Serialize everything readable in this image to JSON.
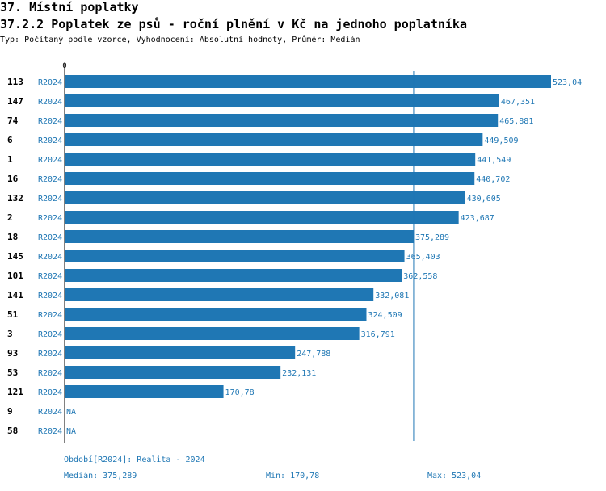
{
  "header": {
    "section": "37. Místní poplatky",
    "title": "37.2.2 Poplatek ze psů - roční plnění v Kč na jednoho poplatníka",
    "subtitle": "Typ: Počítaný podle vzorce, Vyhodnocení: Absolutní hodnoty, Průměr: Medián"
  },
  "chart_data": {
    "type": "bar",
    "orientation": "horizontal",
    "title": "37.2.2 Poplatek ze psů - roční plnění v Kč na jednoho poplatníka",
    "x_tick_label": "0",
    "xlim": [
      0,
      523.04
    ],
    "period": "R2024",
    "categories": [
      "113",
      "147",
      "74",
      "6",
      "1",
      "16",
      "132",
      "2",
      "18",
      "145",
      "101",
      "141",
      "51",
      "3",
      "93",
      "53",
      "121",
      "9",
      "58"
    ],
    "values": [
      523.04,
      467.351,
      465.881,
      449.509,
      441.549,
      440.702,
      430.605,
      423.687,
      375.289,
      365.403,
      362.558,
      332.081,
      324.509,
      316.791,
      247.788,
      232.131,
      170.78,
      null,
      null
    ],
    "value_labels": [
      "523,04",
      "467,351",
      "465,881",
      "449,509",
      "441,549",
      "440,702",
      "430,605",
      "423,687",
      "375,289",
      "365,403",
      "362,558",
      "332,081",
      "324,509",
      "316,791",
      "247,788",
      "232,131",
      "170,78",
      "NA",
      "NA"
    ],
    "median": 375.289,
    "bar_color": "#1f77b4",
    "median_line_color": "#1f77b4"
  },
  "footer": {
    "period_legend": "Období[R2024]: Realita - 2024",
    "median": "Medián: 375,289",
    "min": "Min: 170,78",
    "max": "Max: 523,04"
  }
}
